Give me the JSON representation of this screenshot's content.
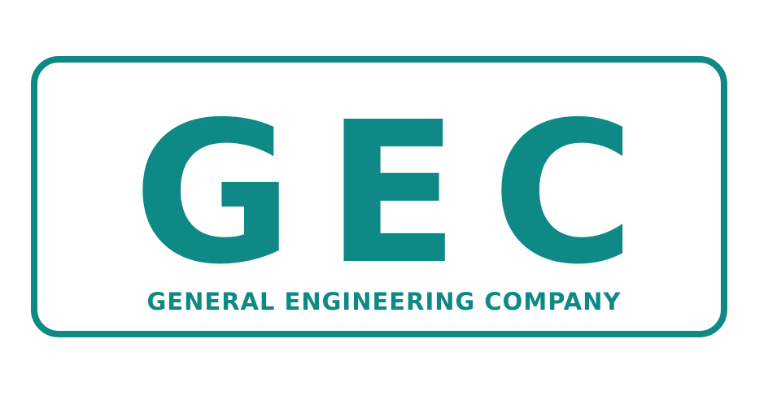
{
  "logo": {
    "monogram": {
      "letter_1": "G",
      "letter_2": "E",
      "letter_3": "C"
    },
    "company_name": "GENERAL ENGINEERING COMPANY",
    "brand_color": "#0f8985",
    "background_color": "#ffffff"
  }
}
